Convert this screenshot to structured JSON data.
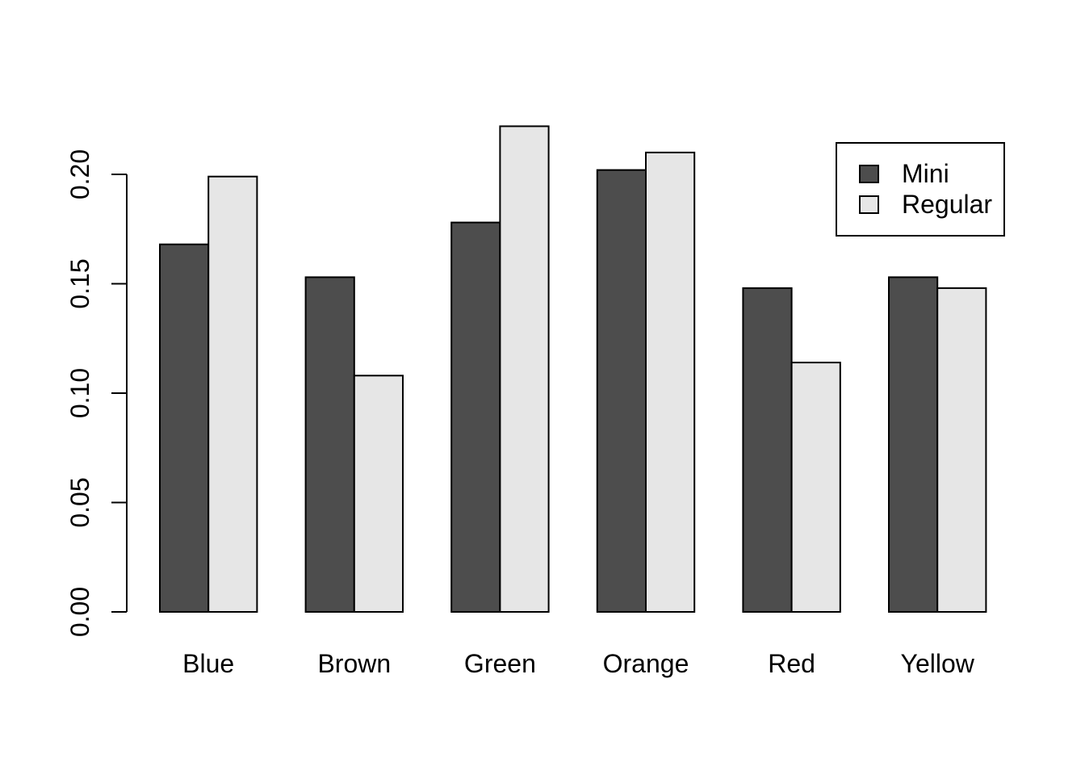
{
  "chart_data": {
    "type": "bar",
    "title": "",
    "xlabel": "",
    "ylabel": "",
    "categories": [
      "Blue",
      "Brown",
      "Green",
      "Orange",
      "Red",
      "Yellow"
    ],
    "series": [
      {
        "name": "Mini",
        "color": "#4d4d4d",
        "values": [
          0.168,
          0.153,
          0.178,
          0.202,
          0.148,
          0.153
        ]
      },
      {
        "name": "Regular",
        "color": "#e6e6e6",
        "values": [
          0.199,
          0.108,
          0.222,
          0.21,
          0.114,
          0.148
        ]
      }
    ],
    "ylim": [
      0,
      0.2
    ],
    "yticks": [
      {
        "value": 0.0,
        "label": "0.00"
      },
      {
        "value": 0.05,
        "label": "0.05"
      },
      {
        "value": 0.1,
        "label": "0.10"
      },
      {
        "value": 0.15,
        "label": "0.15"
      },
      {
        "value": 0.2,
        "label": "0.20"
      }
    ],
    "grid": false,
    "legend": {
      "position": "top-right",
      "entries": [
        "Mini",
        "Regular"
      ]
    }
  }
}
